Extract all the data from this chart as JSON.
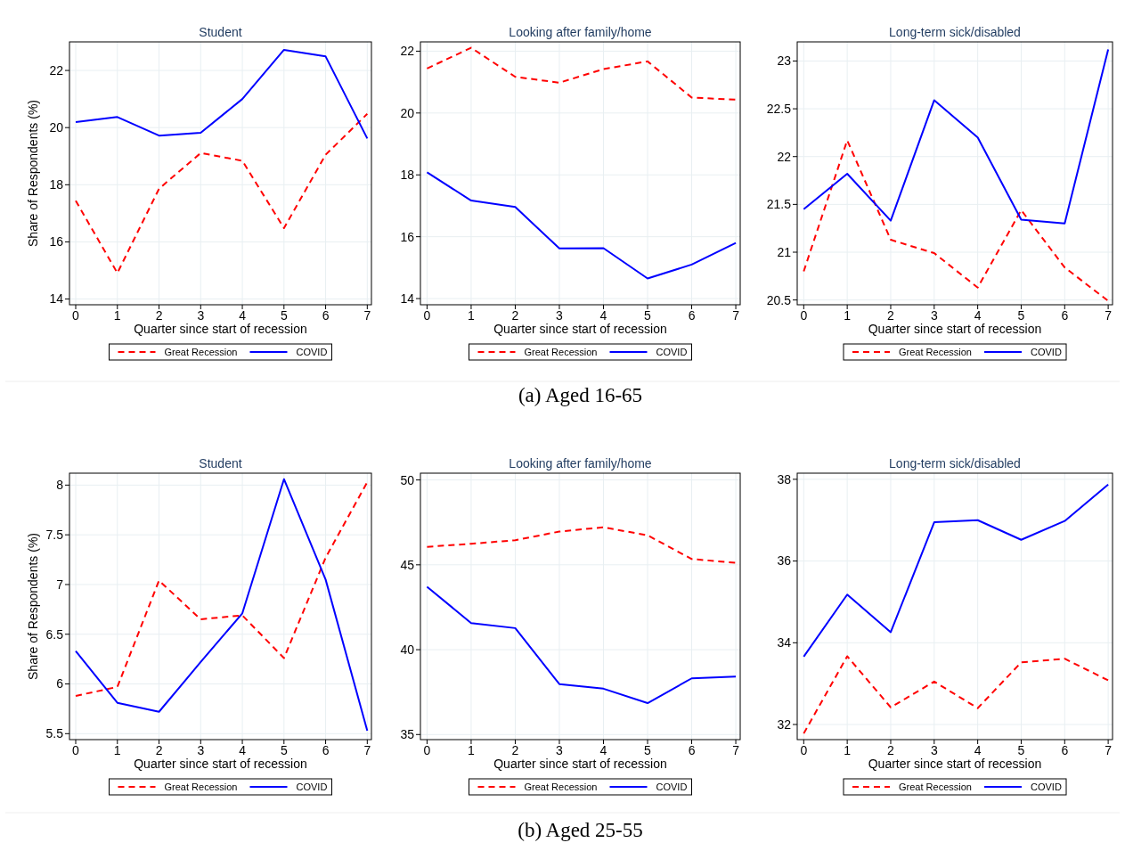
{
  "chart_data": [
    {
      "type": "line",
      "title": "Student",
      "xlabel": "Quarter since start of recession",
      "ylabel": "Share of Respondents (%)",
      "x": [
        0,
        1,
        2,
        3,
        4,
        5,
        6,
        7
      ],
      "xlim": [
        -0.15,
        7.1
      ],
      "xticks": [
        0,
        1,
        2,
        3,
        4,
        5,
        6,
        7
      ],
      "ylim": [
        13.8,
        23
      ],
      "yticks": [
        14,
        16,
        18,
        20,
        22
      ],
      "grid": true,
      "legend": "bottom",
      "marker": "none",
      "series": [
        {
          "name": "Great Recession",
          "color": "#ff0000",
          "line_style": "dashed",
          "values": [
            17.44,
            14.91,
            17.86,
            19.11,
            18.84,
            16.48,
            19.05,
            20.48
          ]
        },
        {
          "name": "COVID",
          "color": "#0000ff",
          "line_style": "solid",
          "values": [
            20.19,
            20.37,
            19.72,
            19.82,
            21.0,
            22.72,
            22.49,
            19.62
          ]
        }
      ]
    },
    {
      "type": "line",
      "title": "Looking after family/home",
      "xlabel": "Quarter since start of recession",
      "x": [
        0,
        1,
        2,
        3,
        4,
        5,
        6,
        7
      ],
      "xlim": [
        -0.15,
        7.1
      ],
      "xticks": [
        0,
        1,
        2,
        3,
        4,
        5,
        6,
        7
      ],
      "ylim": [
        13.8,
        22.3
      ],
      "yticks": [
        14,
        16,
        18,
        20,
        22
      ],
      "grid": true,
      "legend": "bottom",
      "marker": "none",
      "annotations": [
        "(a) Aged 16-65"
      ],
      "series": [
        {
          "name": "Great Recession",
          "color": "#ff0000",
          "line_style": "dashed",
          "values": [
            21.44,
            22.11,
            21.17,
            20.98,
            21.42,
            21.67,
            20.5,
            20.43
          ]
        },
        {
          "name": "COVID",
          "color": "#0000ff",
          "line_style": "solid",
          "values": [
            18.08,
            17.17,
            16.96,
            15.62,
            15.63,
            14.65,
            15.1,
            15.8
          ]
        }
      ]
    },
    {
      "type": "line",
      "title": "Long-term sick/disabled",
      "xlabel": "Quarter since start of recession",
      "x": [
        0,
        1,
        2,
        3,
        4,
        5,
        6,
        7
      ],
      "xlim": [
        -0.15,
        7.1
      ],
      "xticks": [
        0,
        1,
        2,
        3,
        4,
        5,
        6,
        7
      ],
      "ylim": [
        20.45,
        23.2
      ],
      "yticks": [
        20.5,
        21,
        21.5,
        22,
        22.5,
        23
      ],
      "grid": true,
      "legend": "bottom",
      "marker": "none",
      "series": [
        {
          "name": "Great Recession",
          "color": "#ff0000",
          "line_style": "dashed",
          "values": [
            20.8,
            22.17,
            21.13,
            20.99,
            20.63,
            21.44,
            20.84,
            20.49
          ]
        },
        {
          "name": "COVID",
          "color": "#0000ff",
          "line_style": "solid",
          "values": [
            21.45,
            21.82,
            21.33,
            22.59,
            22.2,
            21.34,
            21.3,
            23.12
          ]
        }
      ]
    },
    {
      "type": "line",
      "title": "Student",
      "xlabel": "Quarter since start of recession",
      "ylabel": "Share of Respondents (%)",
      "x": [
        0,
        1,
        2,
        3,
        4,
        5,
        6,
        7
      ],
      "xlim": [
        -0.15,
        7.1
      ],
      "xticks": [
        0,
        1,
        2,
        3,
        4,
        5,
        6,
        7
      ],
      "ylim": [
        5.44,
        8.12
      ],
      "yticks": [
        5.5,
        6,
        6.5,
        7,
        7.5,
        8
      ],
      "grid": true,
      "legend": "bottom",
      "marker": "none",
      "series": [
        {
          "name": "Great Recession",
          "color": "#ff0000",
          "line_style": "dashed",
          "values": [
            5.88,
            5.97,
            7.04,
            6.65,
            6.69,
            6.26,
            7.27,
            8.03
          ]
        },
        {
          "name": "COVID",
          "color": "#0000ff",
          "line_style": "solid",
          "values": [
            6.33,
            5.81,
            5.72,
            6.22,
            6.71,
            8.06,
            7.05,
            5.53
          ]
        }
      ]
    },
    {
      "type": "line",
      "title": "Looking after family/home",
      "xlabel": "Quarter since start of recession",
      "x": [
        0,
        1,
        2,
        3,
        4,
        5,
        6,
        7
      ],
      "xlim": [
        -0.15,
        7.1
      ],
      "xticks": [
        0,
        1,
        2,
        3,
        4,
        5,
        6,
        7
      ],
      "ylim": [
        34.7,
        50.4
      ],
      "yticks": [
        35,
        40,
        45,
        50
      ],
      "grid": true,
      "legend": "bottom",
      "marker": "none",
      "annotations": [
        "(b) Aged 25-55"
      ],
      "series": [
        {
          "name": "Great Recession",
          "color": "#ff0000",
          "line_style": "dashed",
          "values": [
            46.06,
            46.24,
            46.45,
            46.96,
            47.21,
            46.74,
            45.34,
            45.12
          ]
        },
        {
          "name": "COVID",
          "color": "#0000ff",
          "line_style": "solid",
          "values": [
            43.7,
            41.57,
            41.27,
            37.97,
            37.7,
            36.85,
            38.31,
            38.42
          ]
        }
      ]
    },
    {
      "type": "line",
      "title": "Long-term sick/disabled",
      "xlabel": "Quarter since start of recession",
      "x": [
        0,
        1,
        2,
        3,
        4,
        5,
        6,
        7
      ],
      "xlim": [
        -0.15,
        7.1
      ],
      "xticks": [
        0,
        1,
        2,
        3,
        4,
        5,
        6,
        7
      ],
      "ylim": [
        31.63,
        38.15
      ],
      "yticks": [
        32,
        34,
        36,
        38
      ],
      "grid": true,
      "legend": "bottom",
      "marker": "none",
      "series": [
        {
          "name": "Great Recession",
          "color": "#ff0000",
          "line_style": "dashed",
          "values": [
            31.78,
            33.67,
            32.42,
            33.05,
            32.4,
            33.52,
            33.61,
            33.08
          ]
        },
        {
          "name": "COVID",
          "color": "#0000ff",
          "line_style": "solid",
          "values": [
            33.66,
            35.18,
            34.26,
            36.95,
            37.0,
            36.52,
            36.98,
            37.87
          ]
        }
      ]
    }
  ]
}
